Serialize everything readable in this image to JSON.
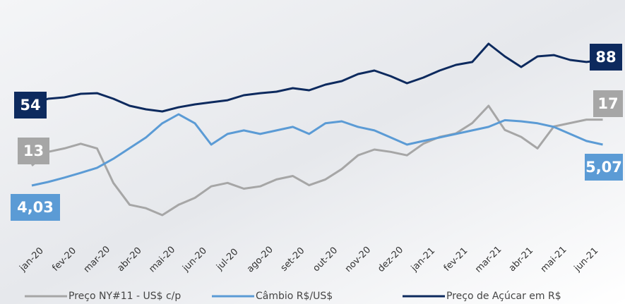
{
  "chart_data": {
    "type": "line",
    "categories": [
      "jan-20",
      null,
      "fev-20",
      null,
      "mar-20",
      null,
      "abr-20",
      null,
      "mai-20",
      null,
      "jun-20",
      null,
      "jul-20",
      null,
      "ago-20",
      null,
      "set-20",
      null,
      "out-20",
      null,
      "nov-20",
      null,
      "dez-20",
      null,
      "jan-21",
      null,
      "fev-21",
      null,
      "mar-21",
      null,
      "abr-21",
      null,
      "mai-21",
      null,
      "jun-21",
      null
    ],
    "series": [
      {
        "name": "Preço NY#11 - US$ c/p",
        "color": "#a6a6a6",
        "values": [
          13,
          14.2,
          14.5,
          14.9,
          14.5,
          11.5,
          9.6,
          9.3,
          8.7,
          9.6,
          10.2,
          11.2,
          11.5,
          11,
          11.2,
          11.8,
          12.1,
          11.3,
          11.8,
          12.7,
          13.9,
          14.4,
          14.2,
          13.9,
          14.9,
          15.5,
          15.8,
          16.7,
          18.2,
          16.1,
          15.5,
          14.5,
          16.4,
          16.7,
          17,
          17
        ],
        "value_labels": [
          "13",
          null,
          null,
          null,
          null,
          null,
          null,
          null,
          null,
          null,
          null,
          null,
          null,
          null,
          null,
          null,
          null,
          null,
          null,
          null,
          null,
          null,
          null,
          null,
          null,
          null,
          null,
          null,
          null,
          null,
          null,
          null,
          null,
          null,
          null,
          "17"
        ]
      },
      {
        "name": "Câmbio R$/US$",
        "color": "#5b9bd5",
        "values": [
          4.03,
          4.12,
          4.23,
          4.35,
          4.48,
          4.71,
          4.98,
          5.25,
          5.61,
          5.84,
          5.61,
          5.07,
          5.34,
          5.43,
          5.34,
          5.43,
          5.52,
          5.34,
          5.61,
          5.66,
          5.52,
          5.43,
          5.25,
          5.07,
          5.16,
          5.25,
          5.34,
          5.43,
          5.52,
          5.69,
          5.66,
          5.61,
          5.52,
          5.34,
          5.16,
          5.07
        ],
        "value_labels": [
          "4,03",
          null,
          null,
          null,
          null,
          null,
          null,
          null,
          null,
          null,
          null,
          null,
          null,
          null,
          null,
          null,
          null,
          null,
          null,
          null,
          null,
          null,
          null,
          null,
          null,
          null,
          null,
          null,
          null,
          null,
          null,
          null,
          null,
          null,
          null,
          "5,07"
        ]
      },
      {
        "name": "Preço de Açúcar em R$",
        "color": "#0d2a5e",
        "values": [
          54,
          58.3,
          59.4,
          62.1,
          62.6,
          58.3,
          52.9,
          50.2,
          48.6,
          51.8,
          54,
          55.6,
          57.2,
          61,
          62.6,
          63.7,
          66.4,
          64.8,
          69.1,
          71.8,
          77.2,
          79.9,
          75.6,
          70.2,
          74.5,
          79.9,
          84.2,
          86.4,
          100.4,
          90.7,
          82.6,
          90.7,
          91.7,
          88,
          86.4,
          88
        ],
        "value_labels": [
          "54",
          null,
          null,
          null,
          null,
          null,
          null,
          null,
          null,
          null,
          null,
          null,
          null,
          null,
          null,
          null,
          null,
          null,
          null,
          null,
          null,
          null,
          null,
          null,
          null,
          null,
          null,
          null,
          null,
          null,
          null,
          null,
          null,
          null,
          null,
          "88"
        ]
      }
    ]
  }
}
